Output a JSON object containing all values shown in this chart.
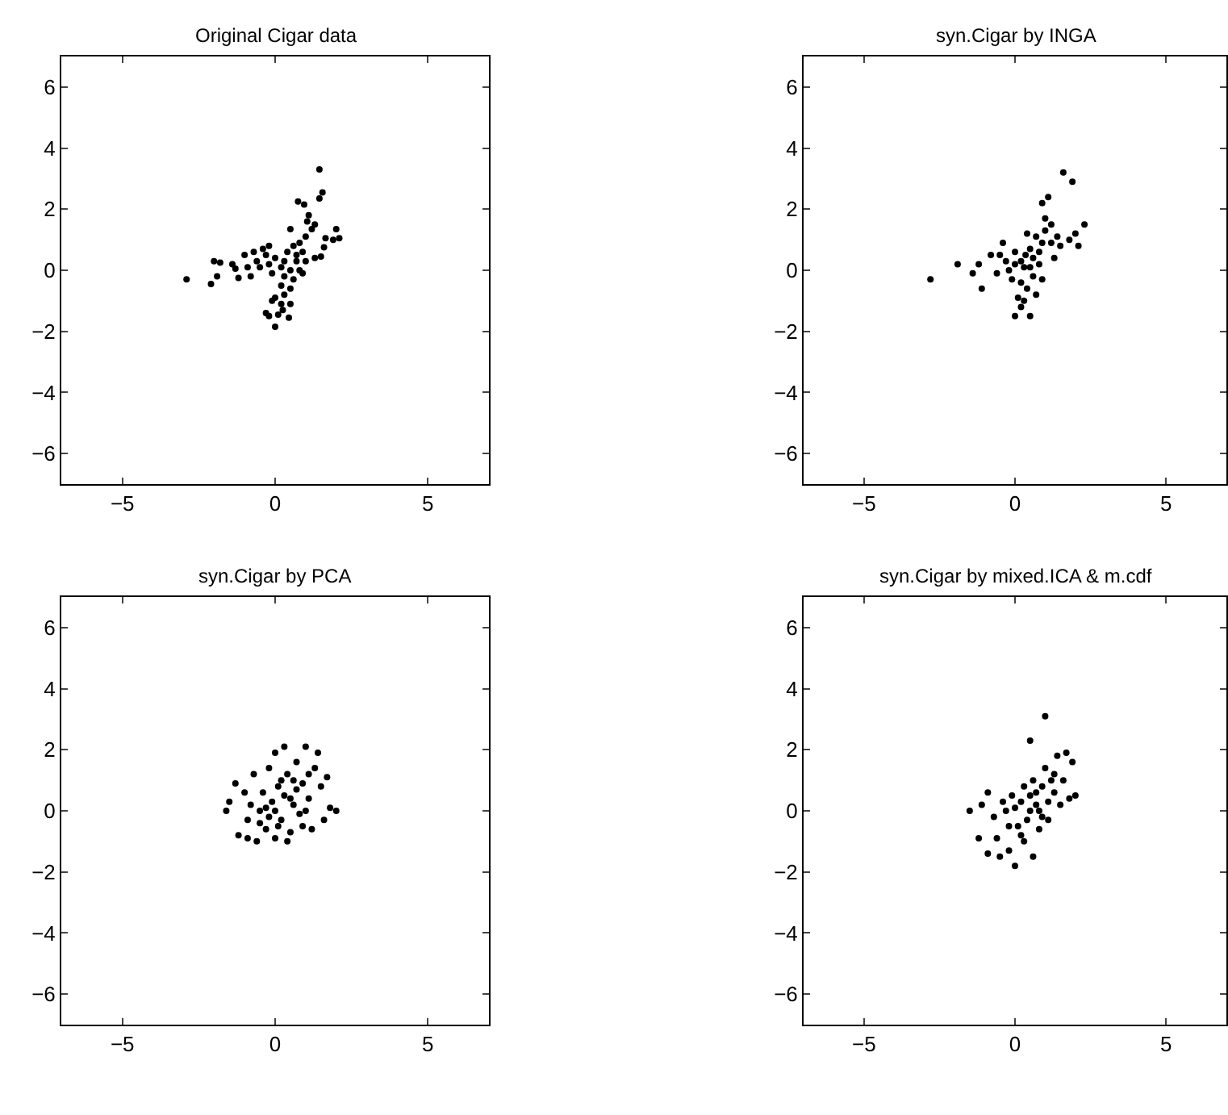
{
  "chart_data": [
    {
      "type": "scatter",
      "title": "Original Cigar data",
      "color": "#000000",
      "marker": "circle",
      "xlim": [
        -7,
        7
      ],
      "ylim": [
        -7,
        7
      ],
      "xticks": [
        -5,
        0,
        5
      ],
      "yticks": [
        -6,
        -4,
        -2,
        0,
        2,
        4,
        6
      ],
      "x": [
        -2.9,
        -2.1,
        -2.0,
        -1.8,
        -1.9,
        -1.4,
        -1.3,
        -1.2,
        -1.0,
        -0.9,
        -0.8,
        -0.7,
        -0.6,
        -0.5,
        -0.4,
        -0.3,
        -0.2,
        -0.2,
        -0.1,
        0,
        1.45,
        1.55,
        1.45,
        0.75,
        0.95,
        1.1,
        1.05,
        1.3,
        0.5,
        1.2,
        2.0,
        1.65,
        2.1,
        1.9,
        1.6,
        1.5,
        1.3,
        0.8,
        0.6,
        0.9,
        1.0,
        0.4,
        0.3,
        0.7,
        1.0,
        0.5,
        0.3,
        0.6,
        0.2,
        0.5,
        0.3,
        0,
        -0.1,
        0.2,
        0.5,
        -0.3,
        -0.2,
        0.1,
        0.45,
        0.25,
        0,
        0.8,
        0.7,
        0.2,
        0.9
      ],
      "values": [
        -0.3,
        -0.45,
        0.3,
        0.25,
        -0.2,
        0.2,
        0.05,
        -0.25,
        0.5,
        0.1,
        -0.2,
        0.6,
        0.3,
        0.1,
        0.7,
        0.5,
        0.8,
        0.2,
        -0.1,
        0.4,
        3.3,
        2.55,
        2.35,
        2.25,
        2.15,
        1.8,
        1.6,
        1.5,
        1.35,
        1.35,
        1.35,
        1.05,
        1.05,
        1.0,
        0.75,
        0.45,
        0.4,
        0.9,
        0.8,
        0.6,
        1.1,
        0.6,
        0.3,
        0.3,
        0.3,
        0.0,
        -0.2,
        -0.3,
        -0.5,
        -0.6,
        -0.8,
        -0.9,
        -1.0,
        -1.1,
        -1.1,
        -1.4,
        -1.5,
        -1.45,
        -1.55,
        -1.3,
        -1.85,
        0.0,
        0.5,
        0.1,
        -0.1
      ]
    },
    {
      "type": "scatter",
      "title": "syn.Cigar by INGA",
      "color": "#000000",
      "marker": "circle",
      "xlim": [
        -7,
        7
      ],
      "ylim": [
        -7,
        7
      ],
      "xticks": [
        -5,
        0,
        5
      ],
      "yticks": [
        -6,
        -4,
        -2,
        0,
        2,
        4,
        6
      ],
      "x": [
        -2.8,
        -1.9,
        -1.2,
        -1.1,
        -0.8,
        -0.6,
        -0.4,
        -0.3,
        -0.1,
        0,
        0.1,
        0.2,
        0.5,
        0.0,
        0.3,
        0.4,
        0.3,
        0.6,
        0.8,
        0.9,
        1.0,
        1.2,
        1.0,
        0.9,
        1.1,
        1.6,
        1.9,
        1.5,
        1.8,
        2.0,
        2.3,
        2.1,
        1.3,
        0.7,
        0.5,
        0.2,
        0.6,
        0.9,
        -0.2,
        -0.5,
        0.4,
        1.2,
        0.8,
        0.2,
        0.7,
        0.5,
        1.4,
        -1.4,
        0.0,
        0.35
      ],
      "values": [
        -0.3,
        0.2,
        0.2,
        -0.6,
        0.5,
        -0.1,
        0.9,
        0.3,
        -0.3,
        0.6,
        -0.9,
        -1.2,
        -1.5,
        -1.5,
        -1.0,
        -0.6,
        0.1,
        0.4,
        0.2,
        0.9,
        1.3,
        1.5,
        1.7,
        2.2,
        2.4,
        3.2,
        2.9,
        0.8,
        1.0,
        1.2,
        1.5,
        0.8,
        0.4,
        1.1,
        0.7,
        0.3,
        -0.2,
        -0.3,
        0.0,
        0.5,
        1.2,
        0.9,
        0.6,
        -0.4,
        -0.8,
        0.1,
        1.1,
        -0.1,
        0.2,
        0.5
      ]
    },
    {
      "type": "scatter",
      "title": "syn.Cigar by PCA",
      "color": "#000000",
      "marker": "circle",
      "xlim": [
        -7,
        7
      ],
      "ylim": [
        -7,
        7
      ],
      "xticks": [
        -5,
        0,
        5
      ],
      "yticks": [
        -6,
        -4,
        -2,
        0,
        2,
        4,
        6
      ],
      "x": [
        -1.5,
        -1.2,
        -1.0,
        -1.3,
        -0.9,
        -0.7,
        -0.6,
        -0.5,
        -0.4,
        -0.3,
        -0.2,
        -0.1,
        0,
        0,
        0.1,
        0.2,
        0.3,
        0.3,
        0.4,
        0.5,
        0.6,
        0.7,
        0.8,
        0.9,
        1.0,
        1.1,
        1.2,
        1.3,
        1.5,
        1.6,
        1.8,
        2.0,
        1.7,
        1.4,
        0.6,
        -0.8,
        0.1,
        -0.3,
        0.5,
        0.2,
        -1.6,
        -0.9,
        0.9,
        1.1,
        -0.5,
        0.4,
        0.7,
        0.0,
        -0.2,
        1.0
      ],
      "values": [
        0.3,
        -0.8,
        0.6,
        0.9,
        -0.3,
        1.2,
        -1.0,
        0.0,
        0.6,
        -0.6,
        1.4,
        0.3,
        -0.9,
        1.9,
        0.8,
        -0.3,
        2.1,
        0.5,
        1.2,
        -0.7,
        0.2,
        1.6,
        -0.1,
        0.9,
        2.1,
        0.4,
        -0.6,
        1.4,
        0.8,
        -0.3,
        0.1,
        0.0,
        1.1,
        1.9,
        1.0,
        0.2,
        -0.5,
        0.1,
        0.4,
        1.0,
        0.0,
        -0.9,
        -0.5,
        1.2,
        -0.4,
        -1.0,
        0.7,
        0.0,
        -0.2,
        0.0
      ]
    },
    {
      "type": "scatter",
      "title": "syn.Cigar by mixed.ICA & m.cdf",
      "color": "#000000",
      "marker": "circle",
      "xlim": [
        -7,
        7
      ],
      "ylim": [
        -7,
        7
      ],
      "xticks": [
        -5,
        0,
        5
      ],
      "yticks": [
        -6,
        -4,
        -2,
        0,
        2,
        4,
        6
      ],
      "x": [
        -1.5,
        -1.2,
        -0.9,
        -0.7,
        -0.5,
        -0.4,
        -0.6,
        -0.2,
        -0.1,
        0,
        0.1,
        0.2,
        0.3,
        0.4,
        0.5,
        0.6,
        0.7,
        0.8,
        0.9,
        0.5,
        1.0,
        1.0,
        1.2,
        1.4,
        1.7,
        1.9,
        1.6,
        1.3,
        1.8,
        2.0,
        1.5,
        0.8,
        0.6,
        0.3,
        0.0,
        -0.2,
        -0.9,
        1.1,
        0.9,
        0.2,
        0.7,
        -0.3,
        1.3,
        0.5,
        1.1,
        -1.1
      ],
      "values": [
        0.0,
        -0.9,
        0.6,
        -0.2,
        -1.5,
        0.3,
        -0.9,
        -1.3,
        0.5,
        -1.8,
        -0.5,
        0.3,
        -1.0,
        -0.3,
        0.5,
        -1.5,
        0.2,
        -0.6,
        0.8,
        2.3,
        3.1,
        1.4,
        1.0,
        1.8,
        1.9,
        1.6,
        1.0,
        0.6,
        0.4,
        0.5,
        0.2,
        0.0,
        1.0,
        0.8,
        0.1,
        -0.5,
        -1.4,
        0.3,
        -0.2,
        -0.8,
        0.6,
        0.0,
        1.2,
        0.0,
        -0.3,
        0.2
      ]
    }
  ]
}
